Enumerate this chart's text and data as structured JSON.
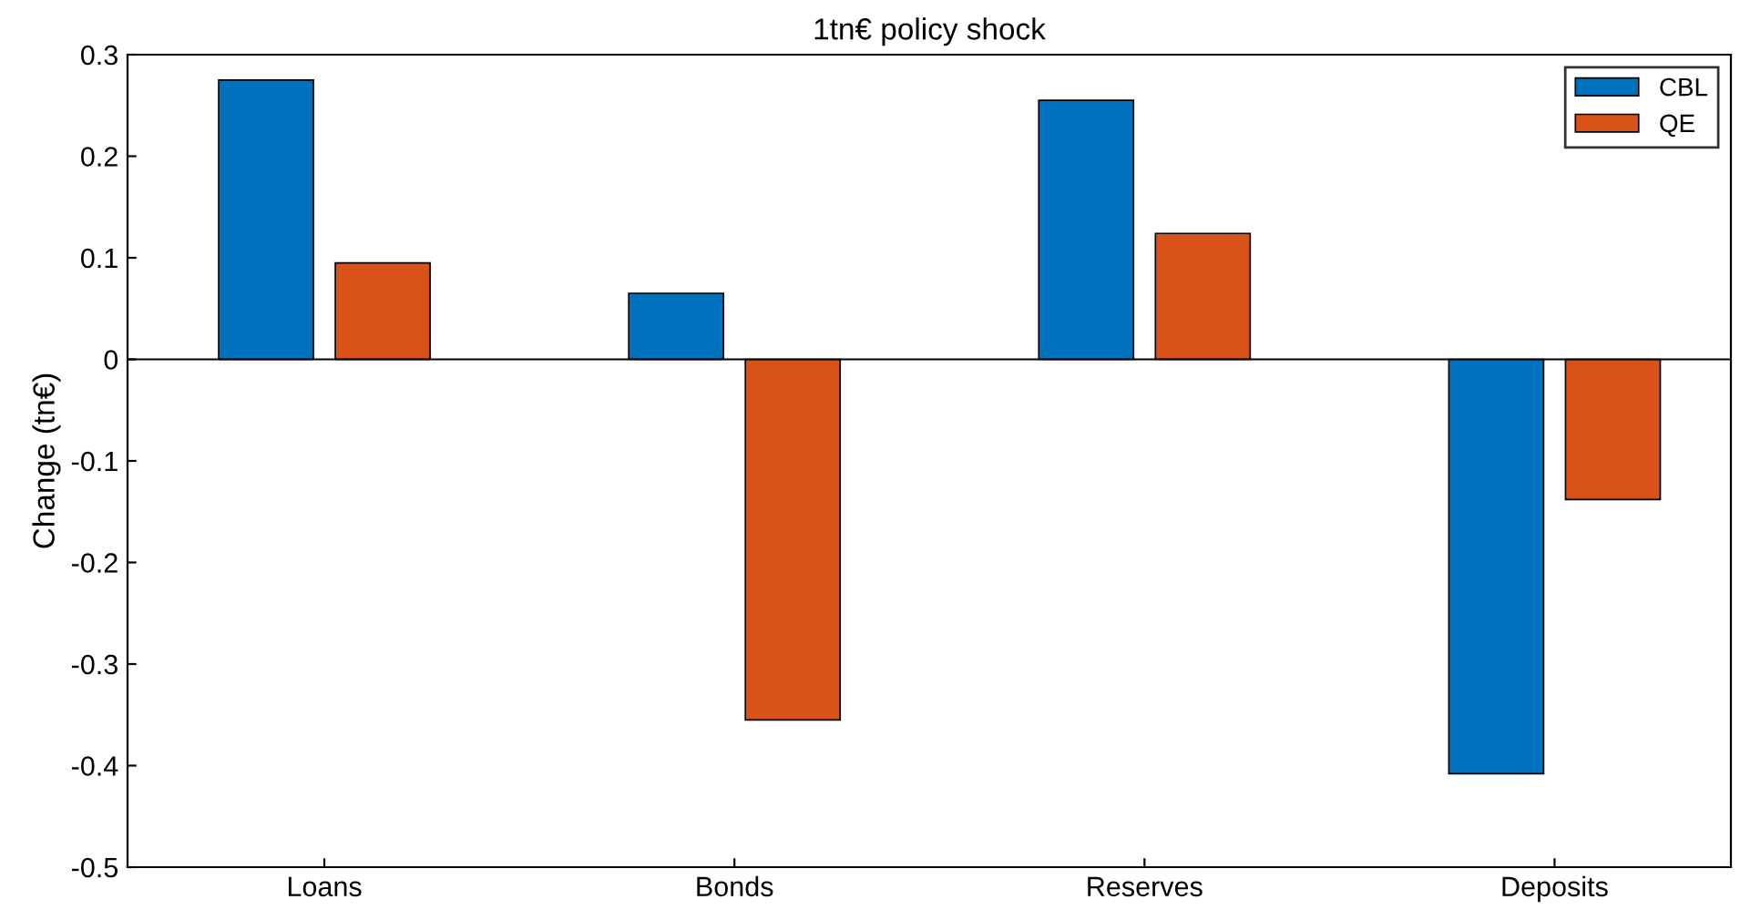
{
  "chart_data": {
    "type": "bar",
    "title": "1tn€ policy shock",
    "ylabel": "Change (tn€)",
    "categories": [
      "Loans",
      "Bonds",
      "Reserves",
      "Deposits"
    ],
    "series": [
      {
        "name": "CBL",
        "color": "#0072bd",
        "values": [
          0.275,
          0.065,
          0.255,
          -0.408
        ]
      },
      {
        "name": "QE",
        "color": "#d95319",
        "values": [
          0.095,
          -0.355,
          0.124,
          -0.138
        ]
      }
    ],
    "ylim": [
      -0.5,
      0.3
    ],
    "yticks": [
      -0.5,
      -0.4,
      -0.3,
      -0.2,
      -0.1,
      0,
      0.1,
      0.2,
      0.3
    ],
    "ref_lines": [
      {
        "axis": "y",
        "value": 0,
        "color": "#000000"
      }
    ],
    "grid": false,
    "legend": "top right"
  }
}
